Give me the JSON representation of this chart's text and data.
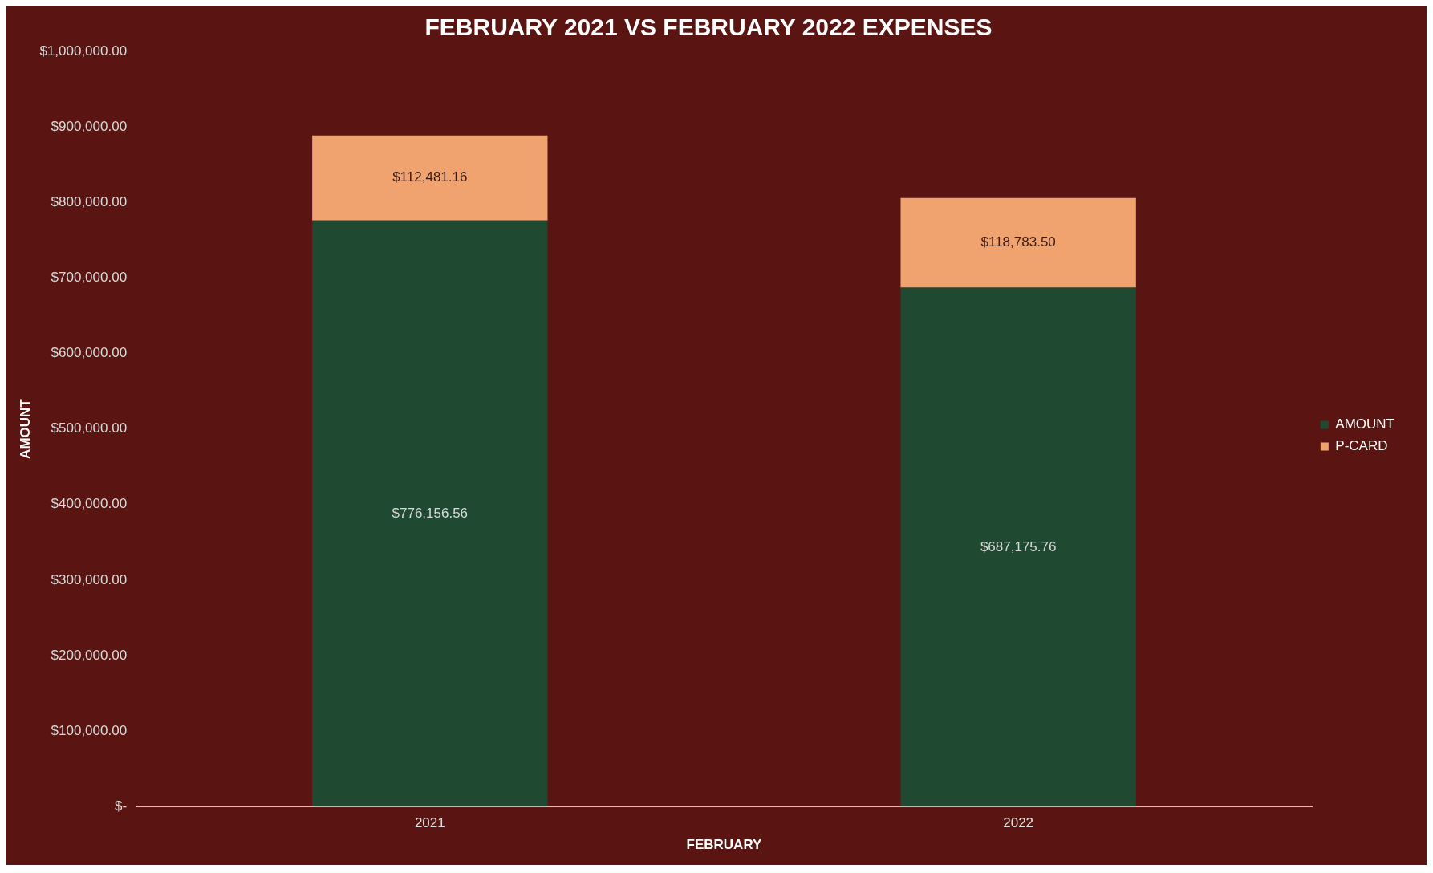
{
  "chart_data": {
    "type": "bar",
    "title": "FEBRUARY 2021 VS FEBRUARY 2022 EXPENSES",
    "xlabel": "FEBRUARY",
    "ylabel": "AMOUNT",
    "categories": [
      "2021",
      "2022"
    ],
    "stacked": true,
    "series": [
      {
        "name": "AMOUNT",
        "color": "#1f4a31",
        "values": [
          776156.56,
          687175.76
        ],
        "value_labels": [
          "$776,156.56",
          "$687,175.76"
        ]
      },
      {
        "name": "P-CARD",
        "color": "#f0a36e",
        "values": [
          112481.16,
          118783.5
        ],
        "value_labels": [
          "$112,481.16",
          "$118,783.50"
        ]
      }
    ],
    "ylim": [
      0,
      1000000
    ],
    "yticks": [
      {
        "value": 0,
        "label": "$-"
      },
      {
        "value": 100000,
        "label": "$100,000.00"
      },
      {
        "value": 200000,
        "label": "$200,000.00"
      },
      {
        "value": 300000,
        "label": "$300,000.00"
      },
      {
        "value": 400000,
        "label": "$400,000.00"
      },
      {
        "value": 500000,
        "label": "$500,000.00"
      },
      {
        "value": 600000,
        "label": "$600,000.00"
      },
      {
        "value": 700000,
        "label": "$700,000.00"
      },
      {
        "value": 800000,
        "label": "$800,000.00"
      },
      {
        "value": 900000,
        "label": "$900,000.00"
      },
      {
        "value": 1000000,
        "label": "$1,000,000.00"
      }
    ],
    "grid": false,
    "legend": "right"
  }
}
